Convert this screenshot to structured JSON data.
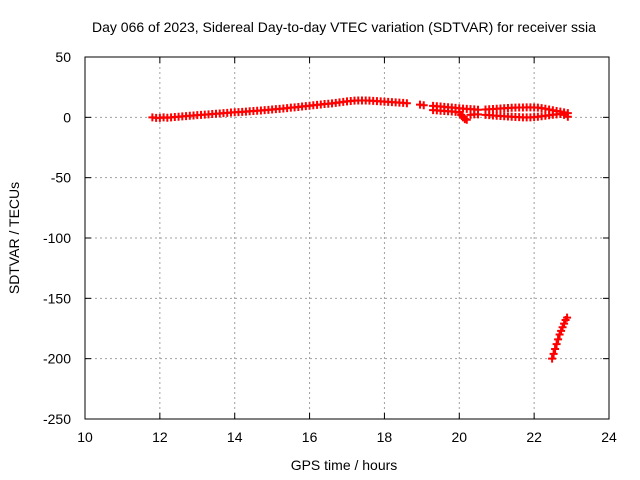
{
  "chart_data": {
    "type": "scatter",
    "title": "Day 066 of 2023, Sidereal Day-to-day VTEC variation (SDTVAR) for receiver ssia",
    "xlabel": "GPS time / hours",
    "ylabel": "SDTVAR / TECUs",
    "xlim": [
      10,
      24
    ],
    "ylim": [
      -250,
      50
    ],
    "xticks": [
      10,
      12,
      14,
      16,
      18,
      20,
      22,
      24
    ],
    "yticks": [
      50,
      0,
      -50,
      -100,
      -150,
      -200,
      -250
    ],
    "grid": true,
    "marker": "plus",
    "color": "#ff0000",
    "series": [
      {
        "points": [
          [
            11.8,
            0
          ],
          [
            11.9,
            -0.5
          ],
          [
            12.0,
            -0.5
          ],
          [
            12.1,
            0
          ],
          [
            12.2,
            -0.3
          ],
          [
            12.3,
            0
          ],
          [
            12.4,
            0.3
          ],
          [
            12.5,
            0.5
          ],
          [
            12.6,
            0.8
          ],
          [
            12.7,
            1
          ],
          [
            12.8,
            1.3
          ],
          [
            12.9,
            1.5
          ],
          [
            13.0,
            1.8
          ],
          [
            13.1,
            2
          ],
          [
            13.2,
            2.2
          ],
          [
            13.3,
            2.5
          ],
          [
            13.4,
            2.8
          ],
          [
            13.5,
            3
          ],
          [
            13.6,
            3.2
          ],
          [
            13.7,
            3.5
          ],
          [
            13.8,
            3.7
          ],
          [
            13.9,
            4
          ],
          [
            14.0,
            4.2
          ],
          [
            14.1,
            4.3
          ],
          [
            14.2,
            4.5
          ],
          [
            14.3,
            4.7
          ],
          [
            14.4,
            5
          ],
          [
            14.5,
            5.2
          ],
          [
            14.6,
            5.5
          ],
          [
            14.7,
            5.7
          ],
          [
            14.8,
            6
          ],
          [
            14.9,
            6.2
          ],
          [
            15.0,
            6.5
          ],
          [
            15.1,
            6.8
          ],
          [
            15.2,
            7
          ],
          [
            15.3,
            7.3
          ],
          [
            15.4,
            7.6
          ],
          [
            15.5,
            8
          ],
          [
            15.6,
            8.3
          ],
          [
            15.7,
            8.6
          ],
          [
            15.8,
            9
          ],
          [
            15.9,
            9.3
          ],
          [
            16.0,
            9.6
          ],
          [
            16.1,
            10
          ],
          [
            16.2,
            10.3
          ],
          [
            16.3,
            10.6
          ],
          [
            16.4,
            11
          ],
          [
            16.5,
            11.3
          ],
          [
            16.6,
            11.6
          ],
          [
            16.7,
            12
          ],
          [
            16.8,
            12.4
          ],
          [
            16.9,
            12.8
          ],
          [
            17.0,
            13.2
          ],
          [
            17.1,
            13.5
          ],
          [
            17.2,
            13.8
          ],
          [
            17.3,
            14
          ],
          [
            17.4,
            14
          ],
          [
            17.5,
            13.9
          ],
          [
            17.6,
            13.8
          ],
          [
            17.7,
            13.6
          ],
          [
            17.8,
            13.4
          ],
          [
            17.9,
            13.2
          ],
          [
            18.0,
            13
          ],
          [
            18.1,
            12.8
          ],
          [
            18.2,
            12.6
          ],
          [
            18.3,
            12.4
          ],
          [
            18.4,
            12.2
          ],
          [
            18.5,
            12
          ],
          [
            18.6,
            11.7
          ],
          [
            18.95,
            10.5
          ],
          [
            19.05,
            10
          ],
          [
            19.3,
            9.5
          ],
          [
            19.4,
            9.2
          ],
          [
            19.5,
            9
          ],
          [
            19.6,
            8.7
          ],
          [
            19.7,
            8.4
          ],
          [
            19.8,
            8.1
          ],
          [
            19.9,
            7.8
          ],
          [
            20.0,
            7.5
          ],
          [
            20.1,
            7.2
          ],
          [
            20.2,
            7
          ],
          [
            20.3,
            6.8
          ],
          [
            20.4,
            6.6
          ],
          [
            20.5,
            6.3
          ],
          [
            20.7,
            6.5
          ],
          [
            20.8,
            6.7
          ],
          [
            20.9,
            6.9
          ],
          [
            21.0,
            7.1
          ],
          [
            21.1,
            7.3
          ],
          [
            21.2,
            7.5
          ],
          [
            21.3,
            7.7
          ],
          [
            21.4,
            7.9
          ],
          [
            21.5,
            8
          ],
          [
            21.6,
            8.1
          ],
          [
            21.7,
            8.2
          ],
          [
            21.8,
            8.3
          ],
          [
            21.9,
            8.3
          ],
          [
            22.0,
            8.2
          ],
          [
            22.1,
            8
          ],
          [
            22.2,
            7.6
          ],
          [
            22.3,
            7.1
          ],
          [
            22.4,
            6.5
          ],
          [
            22.5,
            5.9
          ],
          [
            22.6,
            5.3
          ],
          [
            22.7,
            4.7
          ],
          [
            22.8,
            4.1
          ],
          [
            22.9,
            3.5
          ]
        ]
      },
      {
        "points": [
          [
            19.3,
            6
          ],
          [
            19.4,
            5.8
          ],
          [
            19.5,
            5.5
          ],
          [
            19.6,
            5.2
          ],
          [
            19.7,
            5
          ],
          [
            19.8,
            4.8
          ],
          [
            19.9,
            4.5
          ],
          [
            20.0,
            4
          ],
          [
            20.05,
            2
          ],
          [
            20.1,
            0
          ],
          [
            20.15,
            -1.5
          ],
          [
            20.2,
            -2
          ],
          [
            20.3,
            2
          ],
          [
            20.4,
            2.5
          ],
          [
            20.5,
            2.5
          ],
          [
            20.7,
            2
          ],
          [
            20.8,
            1.8
          ],
          [
            20.9,
            1.5
          ],
          [
            21.0,
            1.3
          ],
          [
            21.1,
            1.1
          ],
          [
            21.2,
            0.9
          ],
          [
            21.3,
            0.7
          ],
          [
            21.4,
            0.5
          ],
          [
            21.5,
            0.3
          ],
          [
            21.6,
            0.2
          ],
          [
            21.7,
            0
          ],
          [
            21.8,
            0
          ],
          [
            21.9,
            0
          ],
          [
            22.0,
            0.2
          ],
          [
            22.1,
            0.5
          ],
          [
            22.2,
            0.9
          ],
          [
            22.3,
            1.3
          ],
          [
            22.4,
            1.7
          ],
          [
            22.5,
            2.1
          ],
          [
            22.6,
            2.5
          ],
          [
            22.7,
            2.8
          ],
          [
            22.8,
            2
          ],
          [
            22.9,
            0.5
          ]
        ]
      },
      {
        "points": [
          [
            22.48,
            -200
          ],
          [
            22.52,
            -196
          ],
          [
            22.56,
            -192
          ],
          [
            22.6,
            -188
          ],
          [
            22.64,
            -184
          ],
          [
            22.68,
            -180
          ],
          [
            22.72,
            -177
          ],
          [
            22.76,
            -174
          ],
          [
            22.8,
            -171
          ],
          [
            22.84,
            -168
          ],
          [
            22.88,
            -166
          ]
        ]
      }
    ]
  }
}
